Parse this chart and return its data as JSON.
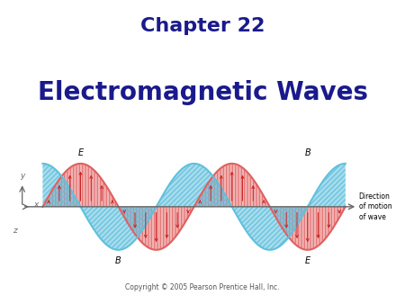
{
  "title1": "Chapter 22",
  "title2": "Electromagnetic Waves",
  "title1_color": "#1a1a8c",
  "title2_color": "#1a1a8c",
  "title1_fontsize": 16,
  "title2_fontsize": 20,
  "bg_color": "#ffffff",
  "wave_color_E": "#e06060",
  "wave_color_B": "#60c0dd",
  "axis_color": "#666666",
  "arrow_color": "#cc2222",
  "label_E": "E",
  "label_B": "B",
  "copyright": "Copyright © 2005 Pearson Prentice Hall, Inc.",
  "direction_text": "Direction\nof motion\nof wave",
  "x_label": "x",
  "y_label": "y",
  "z_label": "z",
  "amplitude_E": 1.0,
  "amplitude_B": 1.0,
  "phase_B": 1.5707963267948966,
  "n_cycles": 2,
  "wave_lw": 1.5
}
